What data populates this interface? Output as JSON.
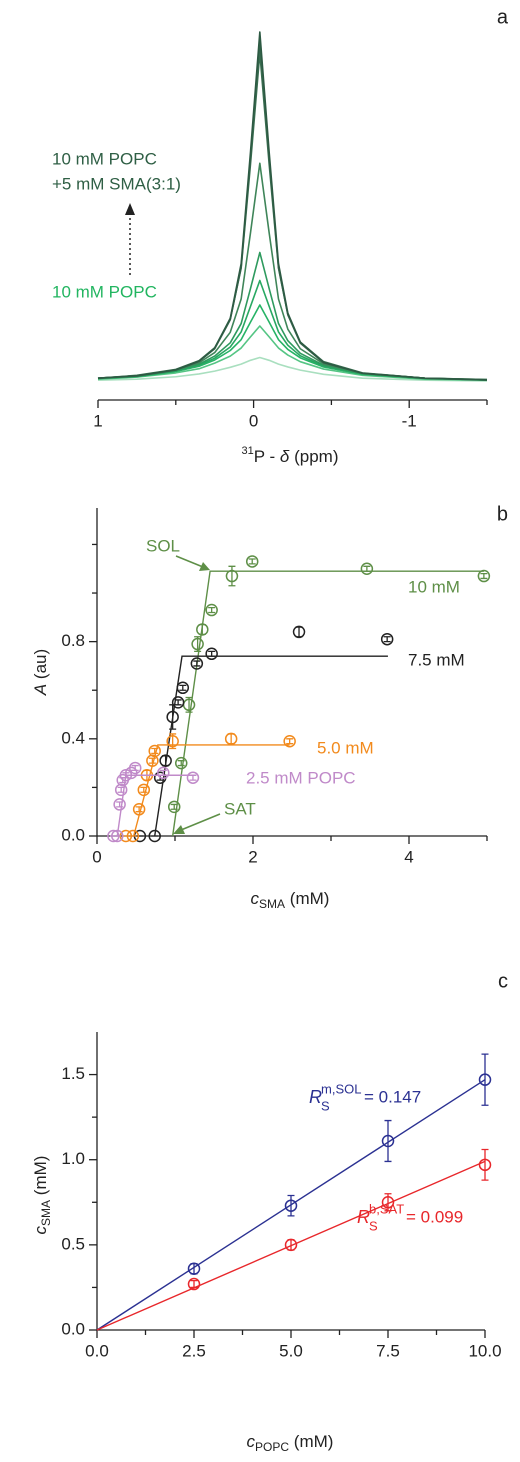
{
  "chart_data": [
    {
      "type": "line",
      "panel": "a",
      "annotations": [
        "10 mM POPC",
        "+5 mM SMA(3:1)",
        "10 mM POPC"
      ],
      "xlabel": [
        "31",
        "P - ",
        "δ",
        " (ppm)"
      ],
      "xlim": [
        1,
        -1.5
      ],
      "xticks": [
        1,
        0,
        -1
      ],
      "xminor": [
        0.5,
        -0.5,
        -1.5
      ],
      "ylim": [
        0,
        1
      ],
      "x": [
        1,
        0.75,
        0.5,
        0.35,
        0.25,
        0.15,
        0.08,
        0.02,
        -0.04,
        -0.1,
        -0.16,
        -0.22,
        -0.3,
        -0.45,
        -0.7,
        -1.1,
        -1.5
      ],
      "series": [
        {
          "color": "#2d5a43",
          "values": [
            0.011,
            0.018,
            0.035,
            0.06,
            0.097,
            0.182,
            0.338,
            0.657,
            1,
            0.657,
            0.338,
            0.197,
            0.114,
            0.056,
            0.025,
            0.011,
            0.006
          ]
        },
        {
          "color": "#35664c",
          "values": [
            0.011,
            0.017,
            0.034,
            0.059,
            0.095,
            0.178,
            0.328,
            0.638,
            0.97,
            0.638,
            0.328,
            0.192,
            0.111,
            0.055,
            0.025,
            0.011,
            0.006
          ]
        },
        {
          "color": "#3c7253",
          "values": [
            0.011,
            0.019,
            0.036,
            0.061,
            0.098,
            0.18,
            0.325,
            0.622,
            0.94,
            0.622,
            0.325,
            0.193,
            0.114,
            0.058,
            0.026,
            0.011,
            0.007
          ]
        },
        {
          "color": "#3f8559",
          "values": [
            0.011,
            0.018,
            0.035,
            0.055,
            0.084,
            0.142,
            0.237,
            0.426,
            0.625,
            0.426,
            0.237,
            0.151,
            0.095,
            0.052,
            0.025,
            0.011,
            0.007
          ]
        },
        {
          "color": "#2e9a5e",
          "values": [
            0.011,
            0.017,
            0.033,
            0.051,
            0.074,
            0.112,
            0.167,
            0.267,
            0.37,
            0.267,
            0.167,
            0.118,
            0.082,
            0.048,
            0.024,
            0.011,
            0.006
          ]
        },
        {
          "color": "#28a862",
          "values": [
            0.01,
            0.016,
            0.031,
            0.048,
            0.068,
            0.1,
            0.143,
            0.216,
            0.29,
            0.216,
            0.143,
            0.105,
            0.075,
            0.045,
            0.023,
            0.01,
            0.006
          ]
        },
        {
          "color": "#27b366",
          "values": [
            0.01,
            0.015,
            0.03,
            0.045,
            0.063,
            0.09,
            0.121,
            0.171,
            0.22,
            0.171,
            0.121,
            0.093,
            0.069,
            0.043,
            0.022,
            0.01,
            0.005
          ]
        },
        {
          "color": "#55c584",
          "values": [
            0.008,
            0.014,
            0.026,
            0.038,
            0.054,
            0.074,
            0.097,
            0.129,
            0.16,
            0.129,
            0.097,
            0.077,
            0.058,
            0.037,
            0.019,
            0.008,
            0.005
          ]
        },
        {
          "color": "#a9dfbf",
          "values": [
            0.005,
            0.008,
            0.015,
            0.023,
            0.031,
            0.042,
            0.051,
            0.062,
            0.07,
            0.062,
            0.051,
            0.043,
            0.034,
            0.022,
            0.011,
            0.005,
            0.003
          ]
        }
      ]
    },
    {
      "type": "scatter",
      "panel": "b",
      "xlabel": [
        "c",
        "SMA",
        " (mM)"
      ],
      "ylabel": [
        "A",
        " (au)"
      ],
      "xlim": [
        0,
        5
      ],
      "xticks": [
        0,
        2,
        4
      ],
      "xminor": [
        1,
        3,
        5
      ],
      "ylim": [
        0,
        1.35
      ],
      "yticks": [
        {
          "value": 0,
          "label": "0.0"
        },
        0.4,
        0.8
      ],
      "yminor": [
        0.2,
        0.6,
        1.0,
        1.2
      ],
      "annotations": [
        "SOL",
        "SAT"
      ],
      "series": [
        {
          "name": "10 mM",
          "color": "#5e8f47",
          "x": [
            0.99,
            1.08,
            1.18,
            1.29,
            1.35,
            1.47,
            1.73,
            1.99,
            3.46,
            4.96
          ],
          "values": [
            0.12,
            0.3,
            0.54,
            0.79,
            0.85,
            0.93,
            1.07,
            1.13,
            1.1,
            1.07
          ],
          "errors": [
            0.01,
            0.01,
            0.03,
            0.03,
            0.02,
            0.01,
            0.04,
            0.01,
            0.01,
            0.01
          ],
          "fit": {
            "x": [
              0.97,
              1.45,
              4.96
            ],
            "values": [
              0,
              1.09,
              1.09
            ]
          }
        },
        {
          "name": "7.5 mM",
          "color": "#222222",
          "x": [
            0.55,
            0.74,
            0.81,
            0.88,
            0.97,
            1.04,
            1.1,
            1.28,
            1.47,
            2.59,
            3.72
          ],
          "values": [
            0,
            0,
            0.24,
            0.31,
            0.49,
            0.55,
            0.61,
            0.71,
            0.75,
            0.84,
            0.81
          ],
          "errors": [
            0,
            0,
            0.01,
            0.02,
            0.05,
            0.01,
            0.01,
            0.01,
            0.01,
            0.02,
            0.01
          ],
          "fit": {
            "x": [
              0.74,
              1.09,
              3.73
            ],
            "values": [
              0,
              0.74,
              0.74
            ]
          }
        },
        {
          "name": "5.0 mM",
          "color": "#f28a1c",
          "x": [
            0.37,
            0.46,
            0.54,
            0.6,
            0.64,
            0.71,
            0.74,
            0.97,
            1.72,
            2.47
          ],
          "values": [
            0,
            0,
            0.11,
            0.19,
            0.25,
            0.31,
            0.35,
            0.39,
            0.4,
            0.39
          ],
          "errors": [
            0,
            0,
            0.01,
            0.01,
            0.02,
            0.01,
            0.01,
            0.03,
            0.02,
            0.01
          ],
          "fit": {
            "x": [
              0.47,
              0.78,
              2.47
            ],
            "values": [
              0,
              0.375,
              0.375
            ]
          }
        },
        {
          "name": "2.5 mM POPC",
          "color": "#c08ac9",
          "x": [
            0.21,
            0.26,
            0.29,
            0.31,
            0.33,
            0.37,
            0.44,
            0.49,
            0.85,
            1.23
          ],
          "values": [
            0,
            0,
            0.13,
            0.19,
            0.23,
            0.25,
            0.26,
            0.28,
            0.26,
            0.24
          ],
          "errors": [
            0,
            0,
            0.01,
            0.01,
            0.01,
            0.01,
            0.01,
            0.01,
            0.01,
            0.01
          ],
          "fit": {
            "x": [
              0.26,
              0.37,
              1.27
            ],
            "values": [
              0,
              0.25,
              0.25
            ]
          }
        }
      ]
    },
    {
      "type": "scatter",
      "panel": "c",
      "xlabel": [
        "c",
        "POPC",
        " (mM)"
      ],
      "ylabel": [
        "c",
        "SMA",
        " (mM)"
      ],
      "xlim": [
        0,
        10
      ],
      "xticks": [
        {
          "value": 0,
          "label": "0.0"
        },
        2.5,
        {
          "value": 5,
          "label": "5.0"
        },
        7.5,
        {
          "value": 10,
          "label": "10.0"
        }
      ],
      "xminor": [
        1.25,
        3.75,
        6.25,
        8.75
      ],
      "ylim": [
        0,
        1.75
      ],
      "yticks": [
        {
          "value": 0,
          "label": "0.0"
        },
        0.5,
        {
          "value": 1,
          "label": "1.0"
        },
        1.5
      ],
      "yminor": [
        0.25,
        0.75,
        1.25
      ],
      "series": [
        {
          "color": "#2b3192",
          "label": [
            "R",
            "S",
            "m,SOL",
            " = 0.147"
          ],
          "x": [
            2.5,
            5,
            7.5,
            10
          ],
          "values": [
            0.36,
            0.73,
            1.11,
            1.47
          ],
          "errors": [
            0.03,
            0.06,
            0.12,
            0.15
          ],
          "fit": {
            "x": [
              0,
              10
            ],
            "values": [
              0,
              1.47
            ]
          }
        },
        {
          "color": "#e8272b",
          "label": [
            "R",
            "S",
            "b,SAT",
            " = 0.099"
          ],
          "x": [
            2.5,
            5,
            7.5,
            10
          ],
          "values": [
            0.27,
            0.5,
            0.75,
            0.97
          ],
          "errors": [
            0.02,
            0.03,
            0.05,
            0.09
          ],
          "fit": {
            "x": [
              0,
              10
            ],
            "values": [
              0,
              0.99
            ]
          }
        }
      ]
    }
  ]
}
